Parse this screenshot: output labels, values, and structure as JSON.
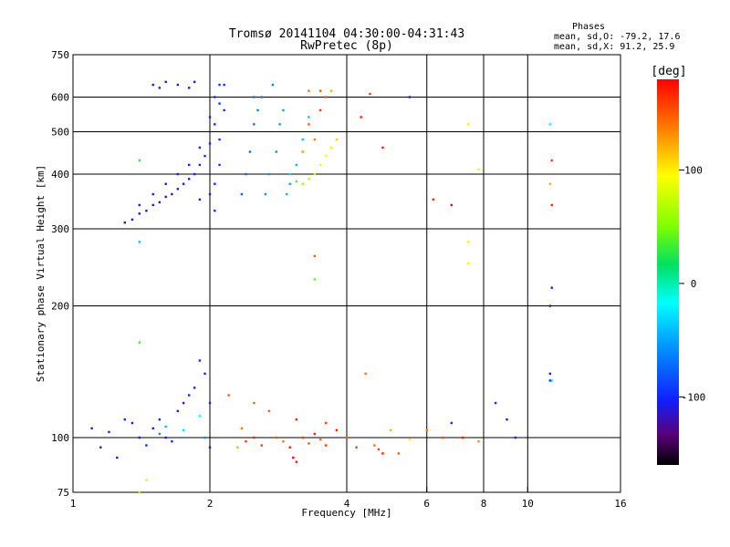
{
  "chart_data": {
    "type": "scatter",
    "title_line1": "Tromsø 20141104 04:30:00-04:31:43",
    "title_line2": "RwPretec (8p)",
    "stats": {
      "heading": "Phases",
      "line_o": "mean, sd,O: -79.2, 17.6",
      "line_x": "mean, sd,X:  91.2, 25.9"
    },
    "xlabel": "Frequency [MHz]",
    "ylabel": "Stationary phase Virtual Height [km]",
    "x_scale": "log",
    "y_scale": "log",
    "xlim": [
      1,
      16
    ],
    "ylim": [
      75,
      750
    ],
    "x_ticks": [
      {
        "value": 1,
        "label": "1"
      },
      {
        "value": 2,
        "label": "2"
      },
      {
        "value": 4,
        "label": "4"
      },
      {
        "value": 6,
        "label": "6"
      },
      {
        "value": 8,
        "label": "8"
      },
      {
        "value": 10,
        "label": "10"
      },
      {
        "value": 16,
        "label": "16"
      }
    ],
    "x_gridlines": [
      2,
      4,
      6,
      8,
      10
    ],
    "y_ticks": [
      {
        "value": 75,
        "label": "75"
      },
      {
        "value": 100,
        "label": "100"
      },
      {
        "value": 200,
        "label": "200"
      },
      {
        "value": 300,
        "label": "300"
      },
      {
        "value": 400,
        "label": "400"
      },
      {
        "value": 500,
        "label": "500"
      },
      {
        "value": 600,
        "label": "600"
      },
      {
        "value": 750,
        "label": "750"
      }
    ],
    "y_gridlines": [
      100,
      200,
      300,
      400,
      500,
      600
    ],
    "colorbar": {
      "unit": "[deg]",
      "min": -160,
      "max": 180,
      "ticks": [
        {
          "value": 100,
          "label": "100"
        },
        {
          "value": 0,
          "label": "0"
        },
        {
          "value": -100,
          "label": "-100"
        }
      ]
    },
    "points": [
      [
        1.5,
        640,
        -110
      ],
      [
        1.55,
        630,
        -110
      ],
      [
        1.6,
        650,
        -110
      ],
      [
        1.7,
        640,
        -110
      ],
      [
        1.8,
        630,
        -110
      ],
      [
        1.85,
        650,
        -110
      ],
      [
        1.3,
        310,
        -115
      ],
      [
        1.35,
        315,
        -115
      ],
      [
        1.4,
        325,
        -115
      ],
      [
        1.45,
        330,
        -115
      ],
      [
        1.5,
        340,
        -110
      ],
      [
        1.55,
        345,
        -110
      ],
      [
        1.6,
        355,
        -110
      ],
      [
        1.65,
        360,
        -110
      ],
      [
        1.7,
        370,
        -110
      ],
      [
        1.75,
        380,
        -110
      ],
      [
        1.8,
        390,
        -105
      ],
      [
        1.85,
        400,
        -105
      ],
      [
        1.9,
        420,
        -105
      ],
      [
        1.95,
        440,
        -100
      ],
      [
        2.0,
        470,
        -100
      ],
      [
        2.05,
        520,
        -100
      ],
      [
        2.1,
        580,
        -95
      ],
      [
        2.1,
        640,
        -95
      ],
      [
        1.4,
        340,
        -110
      ],
      [
        1.5,
        360,
        -110
      ],
      [
        1.6,
        380,
        -110
      ],
      [
        1.7,
        400,
        -105
      ],
      [
        1.8,
        420,
        -105
      ],
      [
        1.9,
        460,
        -100
      ],
      [
        2.0,
        540,
        -100
      ],
      [
        2.05,
        600,
        -95
      ],
      [
        1.9,
        350,
        -105
      ],
      [
        2.0,
        360,
        -100
      ],
      [
        2.05,
        380,
        -100
      ],
      [
        2.1,
        420,
        -95
      ],
      [
        2.15,
        640,
        -95
      ],
      [
        2.15,
        560,
        -95
      ],
      [
        2.1,
        480,
        -95
      ],
      [
        2.05,
        330,
        -100
      ],
      [
        2.35,
        360,
        -80
      ],
      [
        2.4,
        400,
        -75
      ],
      [
        2.45,
        450,
        -70
      ],
      [
        2.5,
        520,
        -70
      ],
      [
        2.55,
        560,
        -65
      ],
      [
        2.6,
        600,
        -65
      ],
      [
        2.65,
        360,
        -60
      ],
      [
        2.7,
        400,
        -55
      ],
      [
        2.8,
        450,
        -55
      ],
      [
        2.85,
        520,
        -50
      ],
      [
        2.9,
        560,
        -50
      ],
      [
        2.95,
        360,
        -45
      ],
      [
        3.0,
        380,
        -45
      ],
      [
        3.1,
        420,
        -40
      ],
      [
        3.2,
        480,
        -40
      ],
      [
        3.3,
        540,
        -40
      ],
      [
        2.5,
        600,
        -70
      ],
      [
        2.75,
        640,
        -65
      ],
      [
        3.0,
        400,
        -30
      ],
      [
        3.1,
        385,
        40
      ],
      [
        3.2,
        380,
        60
      ],
      [
        3.3,
        390,
        70
      ],
      [
        3.4,
        400,
        80
      ],
      [
        3.5,
        420,
        90
      ],
      [
        3.6,
        440,
        95
      ],
      [
        3.7,
        460,
        100
      ],
      [
        3.8,
        480,
        110
      ],
      [
        3.2,
        450,
        130
      ],
      [
        3.4,
        480,
        140
      ],
      [
        3.3,
        520,
        150
      ],
      [
        3.5,
        560,
        160
      ],
      [
        3.6,
        600,
        150
      ],
      [
        3.7,
        620,
        120
      ],
      [
        3.3,
        620,
        140
      ],
      [
        3.5,
        620,
        150
      ],
      [
        4.3,
        540,
        170
      ],
      [
        4.5,
        610,
        160
      ],
      [
        4.8,
        460,
        170
      ],
      [
        5.5,
        600,
        -110
      ],
      [
        6.2,
        350,
        170
      ],
      [
        6.8,
        340,
        180
      ],
      [
        7.4,
        520,
        100
      ],
      [
        7.8,
        410,
        100
      ],
      [
        7.4,
        280,
        100
      ],
      [
        7.4,
        250,
        100
      ],
      [
        9.4,
        100,
        -100
      ],
      [
        11.2,
        520,
        -10
      ],
      [
        11.3,
        430,
        160
      ],
      [
        11.2,
        380,
        120
      ],
      [
        11.3,
        340,
        170
      ],
      [
        11.3,
        220,
        -110
      ],
      [
        11.2,
        200,
        -115
      ],
      [
        11.2,
        140,
        -100
      ],
      [
        11.3,
        135,
        -20
      ],
      [
        11.2,
        135,
        -100
      ],
      [
        1.1,
        105,
        -110
      ],
      [
        1.15,
        95,
        -105
      ],
      [
        1.2,
        103,
        -100
      ],
      [
        1.25,
        90,
        -110
      ],
      [
        1.3,
        110,
        -100
      ],
      [
        1.35,
        108,
        -110
      ],
      [
        1.4,
        100,
        -110
      ],
      [
        1.45,
        96,
        -100
      ],
      [
        1.5,
        105,
        -105
      ],
      [
        1.55,
        110,
        -100
      ],
      [
        1.6,
        100,
        -110
      ],
      [
        1.65,
        98,
        -100
      ],
      [
        1.7,
        115,
        -105
      ],
      [
        1.75,
        120,
        -110
      ],
      [
        1.8,
        125,
        -100
      ],
      [
        1.85,
        130,
        -110
      ],
      [
        1.9,
        150,
        -105
      ],
      [
        1.95,
        140,
        -100
      ],
      [
        2.0,
        120,
        -100
      ],
      [
        2.0,
        95,
        -110
      ],
      [
        1.45,
        80,
        80
      ],
      [
        1.4,
        75,
        60
      ],
      [
        1.4,
        165,
        30
      ],
      [
        1.4,
        430,
        30
      ],
      [
        1.4,
        280,
        -40
      ],
      [
        1.55,
        102,
        -60
      ],
      [
        1.6,
        106,
        -40
      ],
      [
        1.75,
        104,
        -30
      ],
      [
        1.9,
        112,
        -20
      ],
      [
        1.95,
        100,
        -60
      ],
      [
        2.3,
        95,
        120
      ],
      [
        2.35,
        105,
        140
      ],
      [
        2.4,
        98,
        160
      ],
      [
        2.5,
        100,
        170
      ],
      [
        2.6,
        96,
        160
      ],
      [
        2.8,
        100,
        150
      ],
      [
        2.9,
        98,
        140
      ],
      [
        3.0,
        95,
        170
      ],
      [
        3.05,
        90,
        180
      ],
      [
        3.1,
        88,
        170
      ],
      [
        3.2,
        100,
        160
      ],
      [
        3.3,
        97,
        150
      ],
      [
        3.4,
        102,
        170
      ],
      [
        3.5,
        99,
        140
      ],
      [
        3.6,
        96,
        160
      ],
      [
        3.8,
        104,
        170
      ],
      [
        4.0,
        100,
        150
      ],
      [
        4.2,
        95,
        160
      ],
      [
        4.6,
        96,
        140
      ],
      [
        4.7,
        94,
        160
      ],
      [
        4.8,
        92,
        170
      ],
      [
        5.0,
        104,
        120
      ],
      [
        5.2,
        92,
        150
      ],
      [
        5.5,
        99,
        100
      ],
      [
        6.0,
        104,
        140
      ],
      [
        6.5,
        100,
        150
      ],
      [
        6.8,
        108,
        -100
      ],
      [
        7.2,
        100,
        170
      ],
      [
        7.8,
        98,
        130
      ],
      [
        9.0,
        110,
        -110
      ],
      [
        8.5,
        120,
        -100
      ],
      [
        4.4,
        140,
        140
      ],
      [
        3.4,
        260,
        150
      ],
      [
        3.4,
        230,
        40
      ],
      [
        2.2,
        125,
        150
      ],
      [
        2.5,
        120,
        140
      ],
      [
        2.7,
        115,
        150
      ],
      [
        3.1,
        110,
        170
      ],
      [
        3.6,
        108,
        160
      ]
    ]
  }
}
